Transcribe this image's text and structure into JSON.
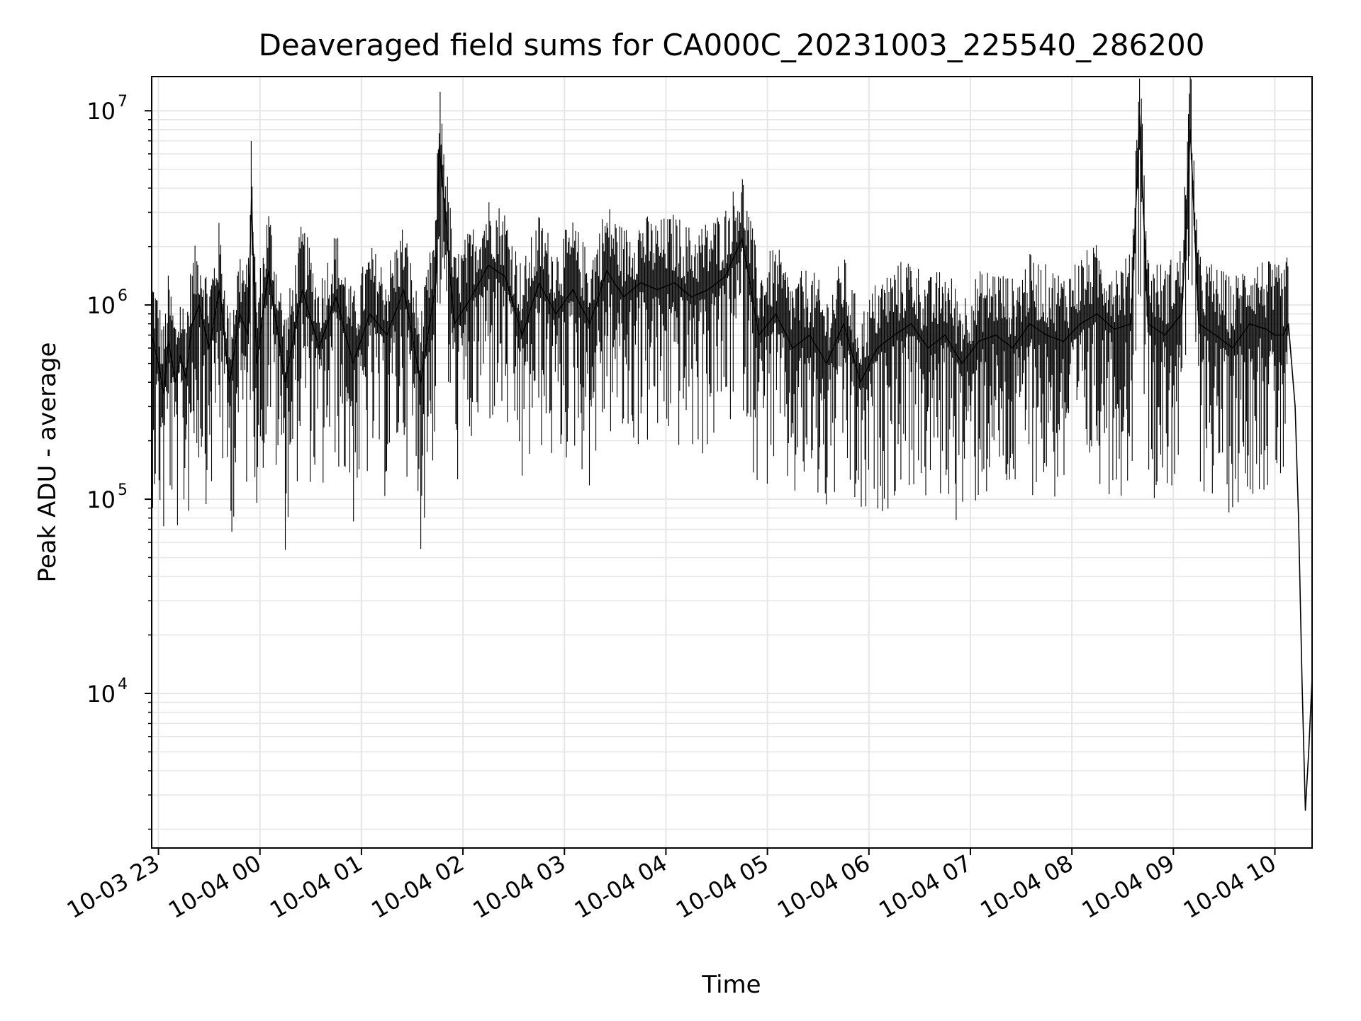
{
  "chart_data": {
    "type": "line",
    "title": "Deaveraged field sums for CA000C_20231003_225540_286200",
    "xlabel": "Time",
    "ylabel": "Peak ADU - average",
    "yscale": "log",
    "ylim": [
      1600,
      15000000
    ],
    "xlim": [
      "2023-10-03 22:56",
      "2023-10-04 10:22"
    ],
    "grid": true,
    "line_color": "#000000",
    "grid_color": "#e6e6e6",
    "x_ticks": [
      {
        "label": "10-03 23",
        "value": "2023-10-03 23:00"
      },
      {
        "label": "10-04 00",
        "value": "2023-10-04 00:00"
      },
      {
        "label": "10-04 01",
        "value": "2023-10-04 01:00"
      },
      {
        "label": "10-04 02",
        "value": "2023-10-04 02:00"
      },
      {
        "label": "10-04 03",
        "value": "2023-10-04 03:00"
      },
      {
        "label": "10-04 04",
        "value": "2023-10-04 04:00"
      },
      {
        "label": "10-04 05",
        "value": "2023-10-04 05:00"
      },
      {
        "label": "10-04 06",
        "value": "2023-10-04 06:00"
      },
      {
        "label": "10-04 07",
        "value": "2023-10-04 07:00"
      },
      {
        "label": "10-04 08",
        "value": "2023-10-04 08:00"
      },
      {
        "label": "10-04 09",
        "value": "2023-10-04 09:00"
      },
      {
        "label": "10-04 10",
        "value": "2023-10-04 10:00"
      }
    ],
    "y_ticks": [
      {
        "base": "10",
        "exp": "4",
        "value": 10000
      },
      {
        "base": "10",
        "exp": "5",
        "value": 100000
      },
      {
        "base": "10",
        "exp": "6",
        "value": 1000000
      },
      {
        "base": "10",
        "exp": "7",
        "value": 10000000
      }
    ],
    "series": [
      {
        "x": [
          "2023-10-03 22:56",
          "2023-10-03 23:00",
          "2023-10-03 23:03",
          "2023-10-03 23:06",
          "2023-10-03 23:10",
          "2023-10-03 23:13",
          "2023-10-03 23:16",
          "2023-10-03 23:20",
          "2023-10-03 23:24",
          "2023-10-03 23:30",
          "2023-10-03 23:36",
          "2023-10-03 23:42",
          "2023-10-03 23:48",
          "2023-10-03 23:53",
          "2023-10-03 23:55",
          "2023-10-03 23:58",
          "2023-10-04 00:05",
          "2023-10-04 00:15",
          "2023-10-04 00:25",
          "2023-10-04 00:35",
          "2023-10-04 00:45",
          "2023-10-04 00:55",
          "2023-10-04 01:05",
          "2023-10-04 01:15",
          "2023-10-04 01:25",
          "2023-10-04 01:35",
          "2023-10-04 01:44",
          "2023-10-04 01:46",
          "2023-10-04 01:55",
          "2023-10-04 02:05",
          "2023-10-04 02:15",
          "2023-10-04 02:25",
          "2023-10-04 02:35",
          "2023-10-04 02:45",
          "2023-10-04 02:55",
          "2023-10-04 03:05",
          "2023-10-04 03:15",
          "2023-10-04 03:25",
          "2023-10-04 03:35",
          "2023-10-04 03:45",
          "2023-10-04 03:55",
          "2023-10-04 04:05",
          "2023-10-04 04:15",
          "2023-10-04 04:25",
          "2023-10-04 04:35",
          "2023-10-04 04:45",
          "2023-10-04 04:55",
          "2023-10-04 05:05",
          "2023-10-04 05:15",
          "2023-10-04 05:25",
          "2023-10-04 05:35",
          "2023-10-04 05:45",
          "2023-10-04 05:55",
          "2023-10-04 06:05",
          "2023-10-04 06:15",
          "2023-10-04 06:25",
          "2023-10-04 06:35",
          "2023-10-04 06:45",
          "2023-10-04 06:55",
          "2023-10-04 07:05",
          "2023-10-04 07:15",
          "2023-10-04 07:25",
          "2023-10-04 07:35",
          "2023-10-04 07:45",
          "2023-10-04 07:55",
          "2023-10-04 08:05",
          "2023-10-04 08:15",
          "2023-10-04 08:25",
          "2023-10-04 08:35",
          "2023-10-04 08:40",
          "2023-10-04 08:45",
          "2023-10-04 08:55",
          "2023-10-04 09:05",
          "2023-10-04 09:10",
          "2023-10-04 09:15",
          "2023-10-04 09:25",
          "2023-10-04 09:35",
          "2023-10-04 09:45",
          "2023-10-04 09:55",
          "2023-10-04 10:00",
          "2023-10-04 10:05",
          "2023-10-04 10:08",
          "2023-10-04 10:12",
          "2023-10-04 10:14",
          "2023-10-04 10:16",
          "2023-10-04 10:18",
          "2023-10-04 10:20",
          "2023-10-04 10:22"
        ],
        "y": [
          700000,
          500000,
          350000,
          650000,
          400000,
          550000,
          420000,
          800000,
          1000000,
          600000,
          1200000,
          400000,
          900000,
          700000,
          3500000,
          500000,
          1500000,
          400000,
          1200000,
          600000,
          1100000,
          500000,
          900000,
          700000,
          1200000,
          400000,
          1300000,
          6500000,
          800000,
          1100000,
          1600000,
          1400000,
          700000,
          1300000,
          900000,
          1200000,
          800000,
          1500000,
          1100000,
          1300000,
          1200000,
          1300000,
          1100000,
          1200000,
          1400000,
          2200000,
          700000,
          900000,
          600000,
          700000,
          500000,
          800000,
          400000,
          600000,
          700000,
          800000,
          600000,
          700000,
          500000,
          650000,
          700000,
          600000,
          800000,
          700000,
          650000,
          800000,
          900000,
          750000,
          800000,
          9500000,
          800000,
          700000,
          900000,
          8000000,
          800000,
          700000,
          600000,
          800000,
          750000,
          700000,
          700000,
          800000,
          300000,
          80000,
          12000,
          2500,
          5000,
          12000
        ]
      }
    ]
  }
}
